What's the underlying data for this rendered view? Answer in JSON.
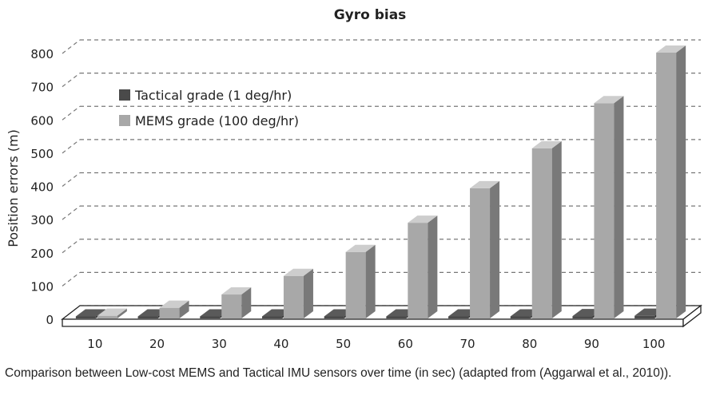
{
  "chart_data": {
    "type": "bar",
    "title": "Gyro bias",
    "xlabel": "",
    "ylabel": "Position errors (m)",
    "categories": [
      "10",
      "20",
      "30",
      "40",
      "50",
      "60",
      "70",
      "80",
      "90",
      "100"
    ],
    "ylim": [
      0,
      800
    ],
    "yticks": [
      "0",
      "100",
      "200",
      "300",
      "400",
      "500",
      "600",
      "700",
      "800"
    ],
    "grid": true,
    "legend_position": "top-left",
    "series": [
      {
        "name": "Tactical grade (1 deg/hr)",
        "color": "#4a4a4a",
        "values": [
          0.1,
          0.3,
          0.7,
          1.2,
          2,
          3,
          4,
          5,
          7,
          8
        ]
      },
      {
        "name": "MEMS grade (100 deg/hr)",
        "color": "#a8a8a8",
        "values": [
          8,
          32,
          72,
          128,
          200,
          288,
          392,
          512,
          648,
          800
        ]
      }
    ]
  },
  "caption": "Comparison between Low-cost MEMS and Tactical IMU sensors over time (in sec) (adapted from (Aggarwal et al., 2010))."
}
